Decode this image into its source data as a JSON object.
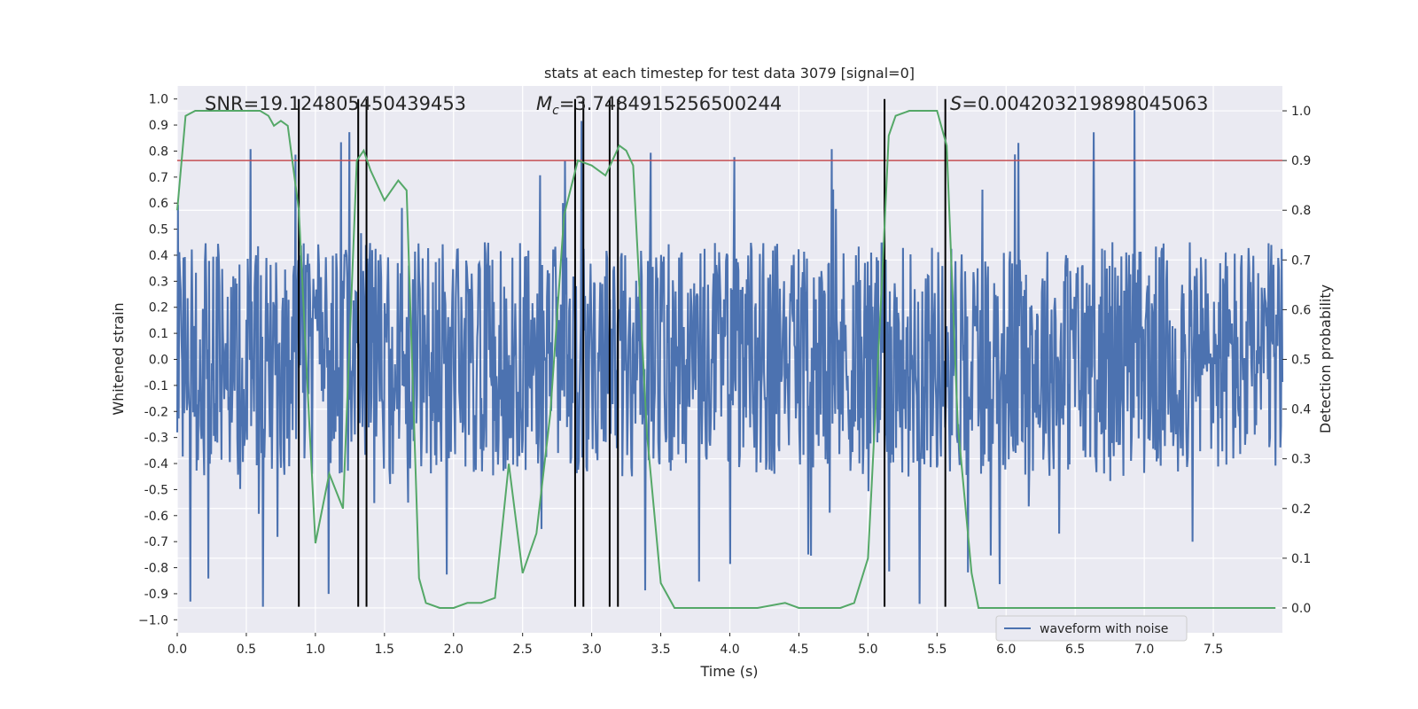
{
  "chart_data": {
    "type": "line",
    "title": "stats at each timestep for test data 3079 [signal=0]",
    "xlabel": "Time (s)",
    "ylabel_left": "Whitened strain",
    "ylabel_right": "Detection probability",
    "xlim": [
      0.0,
      8.0
    ],
    "ylim_left": [
      -1.05,
      1.05
    ],
    "ylim_right": [
      -0.05,
      1.05
    ],
    "x_ticks": [
      "0.0",
      "0.5",
      "1.0",
      "1.5",
      "2.0",
      "2.5",
      "3.0",
      "3.5",
      "4.0",
      "4.5",
      "5.0",
      "5.5",
      "6.0",
      "6.5",
      "7.0",
      "7.5"
    ],
    "x_tick_values": [
      0.0,
      0.5,
      1.0,
      1.5,
      2.0,
      2.5,
      3.0,
      3.5,
      4.0,
      4.5,
      5.0,
      5.5,
      6.0,
      6.5,
      7.0,
      7.5
    ],
    "y_ticks_left": [
      "1.0",
      "0.9",
      "0.8",
      "0.7",
      "0.6",
      "0.5",
      "0.4",
      "0.3",
      "0.2",
      "0.1",
      "0.0",
      "-0.1",
      "-0.2",
      "-0.3",
      "-0.4",
      "-0.5",
      "-0.6",
      "-0.7",
      "-0.8",
      "-0.9",
      "−1.0"
    ],
    "y_tick_values_left": [
      1.0,
      0.9,
      0.8,
      0.7,
      0.6,
      0.5,
      0.4,
      0.3,
      0.2,
      0.1,
      0.0,
      -0.1,
      -0.2,
      -0.3,
      -0.4,
      -0.5,
      -0.6,
      -0.7,
      -0.8,
      -0.9,
      -1.0
    ],
    "y_ticks_right": [
      "1.0",
      "0.9",
      "0.8",
      "0.7",
      "0.6",
      "0.5",
      "0.4",
      "0.3",
      "0.2",
      "0.1",
      "0.0"
    ],
    "y_tick_values_right": [
      1.0,
      0.9,
      0.8,
      0.7,
      0.6,
      0.5,
      0.4,
      0.3,
      0.2,
      0.1,
      0.0
    ],
    "grid": true,
    "legend": {
      "label": "waveform with noise",
      "placement": "lower-center"
    },
    "annotations": {
      "snr": "SNR=19.124805450439453",
      "mc_symbol": "M",
      "mc_sub": "c",
      "mc_value": "=3.7484915256500244",
      "s_symbol": "S",
      "s_value": "=0.004203219898045063"
    },
    "threshold_right": 0.9,
    "vertical_markers": [
      0.88,
      1.31,
      1.37,
      2.88,
      2.94,
      3.13,
      3.19,
      5.12,
      5.56
    ],
    "vertical_marker_range_left": [
      -0.95,
      1.0
    ],
    "waveform": {
      "name": "waveform with noise",
      "x_range": [
        0.0,
        8.0
      ],
      "n_samples": 1600,
      "envelope_abs": 0.45,
      "min": -0.95,
      "max": 0.97
    },
    "probability": {
      "name": "detection probability",
      "x": [
        0.0,
        0.06,
        0.13,
        0.3,
        0.5,
        0.6,
        0.66,
        0.7,
        0.75,
        0.8,
        0.88,
        0.96,
        1.0,
        1.1,
        1.2,
        1.3,
        1.35,
        1.4,
        1.5,
        1.6,
        1.66,
        1.75,
        1.8,
        1.9,
        2.0,
        2.1,
        2.2,
        2.3,
        2.4,
        2.5,
        2.6,
        2.7,
        2.8,
        2.9,
        3.0,
        3.1,
        3.2,
        3.25,
        3.3,
        3.4,
        3.5,
        3.6,
        3.7,
        3.8,
        4.0,
        4.2,
        4.4,
        4.5,
        4.6,
        4.8,
        4.9,
        5.0,
        5.1,
        5.15,
        5.2,
        5.3,
        5.4,
        5.5,
        5.57,
        5.65,
        5.75,
        5.8,
        5.9,
        6.0,
        6.5,
        7.0,
        7.5,
        7.8,
        7.95
      ],
      "y": [
        0.8,
        0.99,
        1.0,
        1.0,
        1.0,
        1.0,
        0.99,
        0.97,
        0.98,
        0.97,
        0.8,
        0.35,
        0.13,
        0.27,
        0.2,
        0.9,
        0.92,
        0.88,
        0.82,
        0.86,
        0.84,
        0.06,
        0.01,
        0.0,
        0.0,
        0.01,
        0.01,
        0.02,
        0.29,
        0.07,
        0.15,
        0.39,
        0.79,
        0.9,
        0.89,
        0.87,
        0.93,
        0.92,
        0.89,
        0.35,
        0.05,
        0.0,
        0.0,
        0.0,
        0.0,
        0.0,
        0.01,
        0.0,
        0.0,
        0.0,
        0.01,
        0.1,
        0.65,
        0.95,
        0.99,
        1.0,
        1.0,
        1.0,
        0.93,
        0.37,
        0.07,
        0.0,
        0.0,
        0.0,
        0.0,
        0.0,
        0.0,
        0.0,
        0.0
      ]
    },
    "colors": {
      "plot_bg": "#eaeaf2",
      "grid": "#ffffff",
      "waveform": "#4c72b0",
      "probability": "#55a868",
      "threshold": "#c44e52",
      "marker": "#000000",
      "text": "#262626"
    }
  }
}
